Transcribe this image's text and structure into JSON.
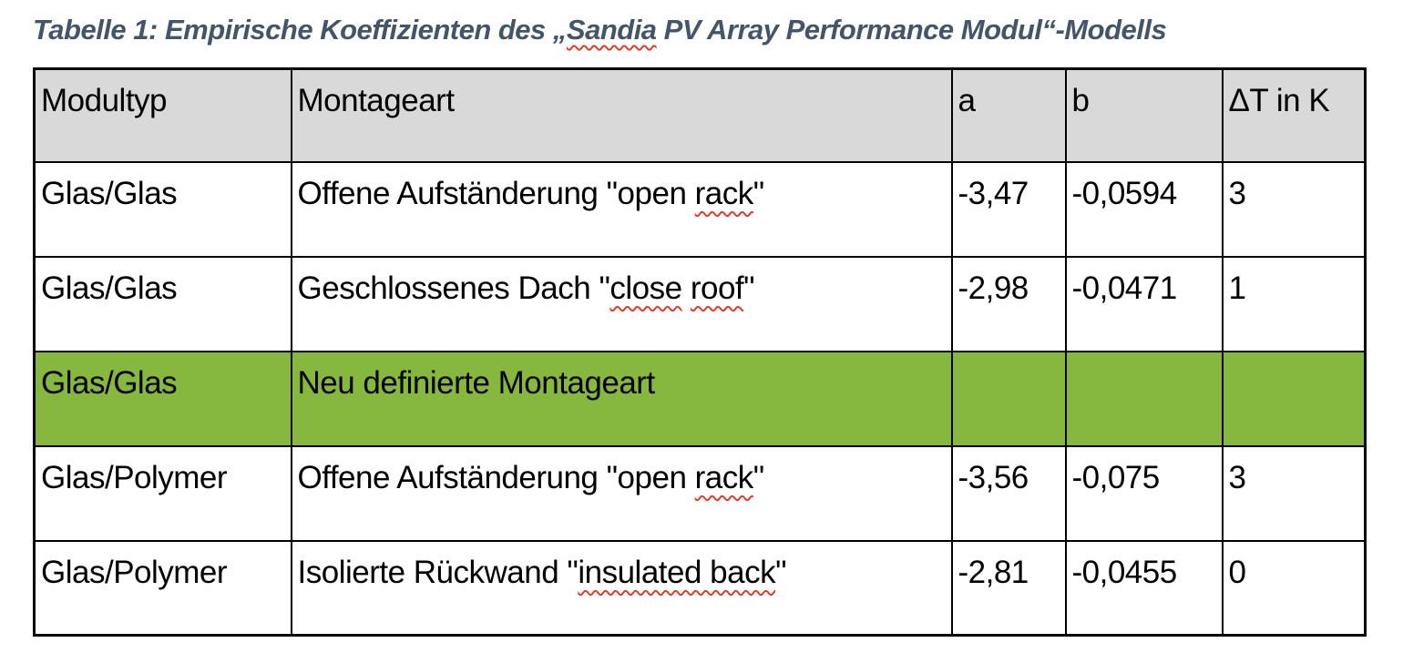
{
  "colors": {
    "caption_text": "#44546A",
    "header_bg": "#D9D9D9",
    "highlight_row_bg": "#86B840",
    "border": "#000000",
    "squiggle": "#E03C2C"
  },
  "caption": {
    "segments": [
      {
        "text": "Tabelle 1: Empirische Koeffizienten des „Sandia",
        "note": ""
      },
      {
        "text": "",
        "misspelled": false
      }
    ]
  },
  "caption_rich": [
    {
      "text": "Tabelle 1: Empirische Koeffizienten des „"
    },
    {
      "text": "Sandia",
      "misspelled": true
    },
    {
      "text": " PV Array Performance Modul“-Modells"
    }
  ],
  "table": {
    "columns": [
      {
        "label": "Modultyp"
      },
      {
        "label": "Montageart"
      },
      {
        "label": "a"
      },
      {
        "label": "b"
      },
      {
        "label": "ΔT in K"
      }
    ],
    "rows": [
      {
        "modultyp": "Glas/Glas",
        "montageart": [
          {
            "text": "Offene Aufständerung \"open "
          },
          {
            "text": "rack",
            "misspelled": true
          },
          {
            "text": "\""
          }
        ],
        "a": "-3,47",
        "b": "-0,0594",
        "dt": "3",
        "highlighted": false
      },
      {
        "modultyp": "Glas/Glas",
        "montageart": [
          {
            "text": "Geschlossenes Dach \""
          },
          {
            "text": "close",
            "misspelled": true
          },
          {
            "text": " "
          },
          {
            "text": "roof",
            "misspelled": true
          },
          {
            "text": "\""
          }
        ],
        "a": "-2,98",
        "b": "-0,0471",
        "dt": "1",
        "highlighted": false
      },
      {
        "modultyp": "Glas/Glas",
        "montageart": [
          {
            "text": "Neu definierte Montageart"
          }
        ],
        "a": "",
        "b": "",
        "dt": "",
        "highlighted": true
      },
      {
        "modultyp": "Glas/Polymer",
        "montageart": [
          {
            "text": "Offene Aufständerung \"open "
          },
          {
            "text": "rack",
            "misspelled": true
          },
          {
            "text": "\""
          }
        ],
        "a": "-3,56",
        "b": "-0,075",
        "dt": "3",
        "highlighted": false
      },
      {
        "modultyp": "Glas/Polymer",
        "montageart": [
          {
            "text": "Isolierte Rückwand \""
          },
          {
            "text": "insulated back",
            "misspelled": true
          },
          {
            "text": "\""
          }
        ],
        "a": "-2,81",
        "b": "-0,0455",
        "dt": "0",
        "highlighted": false
      }
    ]
  }
}
